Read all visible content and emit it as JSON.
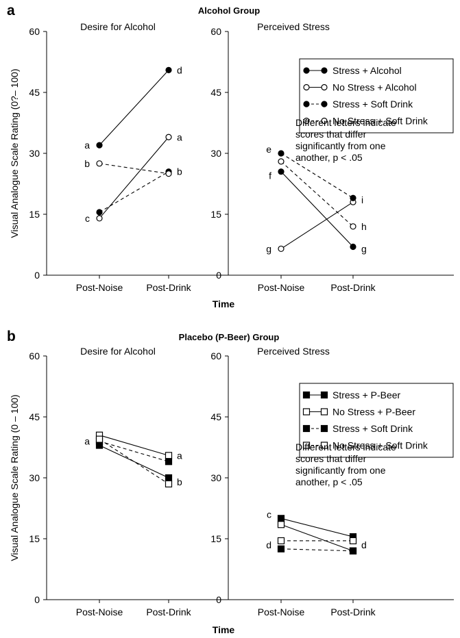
{
  "figure": {
    "xlabel": "Time",
    "panels": [
      {
        "letter": "a",
        "group_title": "Alcohol Group",
        "ylabel": "Visual Analogue Scale Rating (0?– 100)",
        "legend_note": "Different letters indicate scores that differ significantly from one another, p < .05"
      },
      {
        "letter": "b",
        "group_title": "Placebo (P-Beer) Group",
        "ylabel": "Visual Analogue Scale Rating (0 – 100)",
        "legend_note": "Different letters indicate scores that differ significantly from one another, p < .05"
      }
    ]
  },
  "chart_data": [
    {
      "type": "line",
      "panel": "a",
      "title": "Desire for Alcohol",
      "xlabel": "Time",
      "ylabel": "Visual Analogue Scale Rating (0?– 100)",
      "categories": [
        "Post-Noise",
        "Post-Drink"
      ],
      "ylim": [
        0,
        60
      ],
      "yticks": [
        0,
        15,
        30,
        45,
        60
      ],
      "marker": "circle",
      "grid": false,
      "series": [
        {
          "name": "Stress + Alcohol",
          "values": [
            32,
            50.5
          ],
          "filled": true,
          "dashed": false
        },
        {
          "name": "No Stress + Alcohol",
          "values": [
            14,
            34
          ],
          "filled": false,
          "dashed": false
        },
        {
          "name": "Stress + Soft Drink",
          "values": [
            15.5,
            25.5
          ],
          "filled": true,
          "dashed": true
        },
        {
          "name": "No Stress + Soft Drink",
          "values": [
            27.5,
            25
          ],
          "filled": false,
          "dashed": true
        }
      ],
      "annotations": [
        {
          "text": "a",
          "x": "Post-Noise",
          "y": 32,
          "side": "left"
        },
        {
          "text": "b",
          "x": "Post-Noise",
          "y": 27.5,
          "side": "left"
        },
        {
          "text": "c",
          "x": "Post-Noise",
          "y": 14,
          "side": "left"
        },
        {
          "text": "d",
          "x": "Post-Drink",
          "y": 50.5,
          "side": "right"
        },
        {
          "text": "a",
          "x": "Post-Drink",
          "y": 34,
          "side": "right"
        },
        {
          "text": "b",
          "x": "Post-Drink",
          "y": 25.5,
          "side": "right"
        }
      ]
    },
    {
      "type": "line",
      "panel": "a",
      "title": "Perceived Stress",
      "xlabel": "Time",
      "categories": [
        "Post-Noise",
        "Post-Drink"
      ],
      "ylim": [
        0,
        60
      ],
      "yticks": [
        0,
        15,
        30,
        45,
        60
      ],
      "marker": "circle",
      "grid": false,
      "legend_position": "top-right",
      "series": [
        {
          "name": "Stress + Alcohol",
          "values": [
            25.5,
            7
          ],
          "filled": true,
          "dashed": false
        },
        {
          "name": "No Stress + Alcohol",
          "values": [
            6.5,
            18
          ],
          "filled": false,
          "dashed": false
        },
        {
          "name": "Stress + Soft Drink",
          "values": [
            30,
            19
          ],
          "filled": true,
          "dashed": true
        },
        {
          "name": "No Stress + Soft Drink",
          "values": [
            28,
            12
          ],
          "filled": false,
          "dashed": true
        }
      ],
      "annotations": [
        {
          "text": "e",
          "x": "Post-Noise",
          "y": 31,
          "side": "left"
        },
        {
          "text": "f",
          "x": "Post-Noise",
          "y": 24.5,
          "side": "left"
        },
        {
          "text": "g",
          "x": "Post-Noise",
          "y": 6.5,
          "side": "left"
        },
        {
          "text": "i",
          "x": "Post-Drink",
          "y": 18.5,
          "side": "right"
        },
        {
          "text": "h",
          "x": "Post-Drink",
          "y": 12,
          "side": "right"
        },
        {
          "text": "g",
          "x": "Post-Drink",
          "y": 6.5,
          "side": "right"
        }
      ]
    },
    {
      "type": "line",
      "panel": "b",
      "title": "Desire for Alcohol",
      "xlabel": "Time",
      "ylabel": "Visual Analogue Scale Rating (0 – 100)",
      "categories": [
        "Post-Noise",
        "Post-Drink"
      ],
      "ylim": [
        0,
        60
      ],
      "yticks": [
        0,
        15,
        30,
        45,
        60
      ],
      "marker": "square",
      "grid": false,
      "series": [
        {
          "name": "Stress + P-Beer",
          "values": [
            38,
            30
          ],
          "filled": true,
          "dashed": false
        },
        {
          "name": "No Stress + P-Beer",
          "values": [
            40.5,
            35.5
          ],
          "filled": false,
          "dashed": false
        },
        {
          "name": "Stress + Soft Drink",
          "values": [
            39,
            34
          ],
          "filled": true,
          "dashed": true
        },
        {
          "name": "No Stress + Soft Drink",
          "values": [
            39.5,
            28.5
          ],
          "filled": false,
          "dashed": true
        }
      ],
      "annotations": [
        {
          "text": "a",
          "x": "Post-Noise",
          "y": 39,
          "side": "left"
        },
        {
          "text": "a",
          "x": "Post-Drink",
          "y": 35.5,
          "side": "right"
        },
        {
          "text": "b",
          "x": "Post-Drink",
          "y": 29,
          "side": "right"
        }
      ]
    },
    {
      "type": "line",
      "panel": "b",
      "title": "Perceived Stress",
      "xlabel": "Time",
      "categories": [
        "Post-Noise",
        "Post-Drink"
      ],
      "ylim": [
        0,
        60
      ],
      "yticks": [
        0,
        15,
        30,
        45,
        60
      ],
      "marker": "square",
      "grid": false,
      "legend_position": "top-right",
      "series": [
        {
          "name": "Stress + P-Beer",
          "values": [
            20,
            15.5
          ],
          "filled": true,
          "dashed": false
        },
        {
          "name": "No Stress + P-Beer",
          "values": [
            18.5,
            12
          ],
          "filled": false,
          "dashed": false
        },
        {
          "name": "Stress + Soft Drink",
          "values": [
            12.5,
            12
          ],
          "filled": true,
          "dashed": true
        },
        {
          "name": "No Stress + Soft Drink",
          "values": [
            14.5,
            14.5
          ],
          "filled": false,
          "dashed": true
        }
      ],
      "annotations": [
        {
          "text": "c",
          "x": "Post-Noise",
          "y": 21,
          "side": "left"
        },
        {
          "text": "d",
          "x": "Post-Noise",
          "y": 13.5,
          "side": "left"
        },
        {
          "text": "d",
          "x": "Post-Drink",
          "y": 13.5,
          "side": "right"
        }
      ]
    }
  ]
}
